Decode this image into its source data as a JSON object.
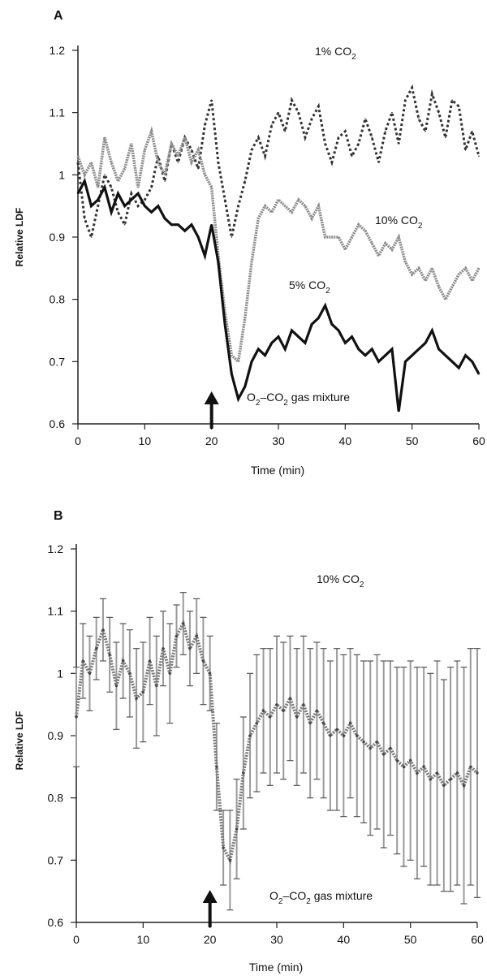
{
  "chart_data": [
    {
      "type": "line",
      "panel": "A",
      "xlabel": "Time (min)",
      "ylabel": "Relative LDF",
      "xlim": [
        0,
        60
      ],
      "ylim": [
        0.6,
        1.2
      ],
      "xticks": [
        "0",
        "10",
        "20",
        "30",
        "40",
        "50",
        "60"
      ],
      "yticks": [
        "0.6",
        "0.7",
        "0.8",
        "0.9",
        "1",
        "1.1",
        "1.2"
      ],
      "grid": false,
      "legend": "none",
      "annotation": {
        "arrow_at_x": 20,
        "text_main": "O",
        "text_sub1": "2",
        "text_mid": "–CO",
        "text_sub2": "2",
        "text_tail": " gas mixture"
      },
      "series": [
        {
          "name": "1% CO 2",
          "label_main": "1% CO",
          "label_sub": "2",
          "style": "dotted",
          "color": "#333333",
          "x": [
            0,
            1,
            2,
            3,
            4,
            5,
            6,
            7,
            8,
            9,
            10,
            11,
            12,
            13,
            14,
            15,
            16,
            17,
            18,
            19,
            20,
            21,
            22,
            23,
            24,
            25,
            26,
            27,
            28,
            29,
            30,
            31,
            32,
            33,
            34,
            35,
            36,
            37,
            38,
            39,
            40,
            41,
            42,
            43,
            44,
            45,
            46,
            47,
            48,
            49,
            50,
            51,
            52,
            53,
            54,
            55,
            56,
            57,
            58,
            59,
            60
          ],
          "y": [
            1.02,
            0.93,
            0.9,
            0.95,
            1.0,
            0.98,
            0.94,
            0.92,
            0.97,
            0.95,
            0.96,
            0.98,
            1.03,
            0.99,
            1.05,
            1.02,
            1.06,
            1.04,
            1.01,
            1.08,
            1.12,
            1.02,
            0.96,
            0.9,
            0.95,
            0.99,
            1.04,
            1.06,
            1.03,
            1.08,
            1.1,
            1.07,
            1.12,
            1.1,
            1.06,
            1.09,
            1.11,
            1.05,
            1.02,
            1.06,
            1.07,
            1.03,
            1.05,
            1.09,
            1.06,
            1.02,
            1.07,
            1.1,
            1.05,
            1.12,
            1.14,
            1.09,
            1.07,
            1.13,
            1.1,
            1.06,
            1.12,
            1.11,
            1.04,
            1.07,
            1.03
          ]
        },
        {
          "name": "10% CO 2",
          "label_main": "10% CO",
          "label_sub": "2",
          "style": "gray-thick",
          "color": "#8e8e8e",
          "x": [
            0,
            1,
            2,
            3,
            4,
            5,
            6,
            7,
            8,
            9,
            10,
            11,
            12,
            13,
            14,
            15,
            16,
            17,
            18,
            19,
            20,
            21,
            22,
            23,
            24,
            25,
            26,
            27,
            28,
            29,
            30,
            31,
            32,
            33,
            34,
            35,
            36,
            37,
            38,
            39,
            40,
            41,
            42,
            43,
            44,
            45,
            46,
            47,
            48,
            49,
            50,
            51,
            52,
            53,
            54,
            55,
            56,
            57,
            58,
            59,
            60
          ],
          "y": [
            1.03,
            1.0,
            1.02,
            0.98,
            1.06,
            1.02,
            0.99,
            1.01,
            1.05,
            0.98,
            1.04,
            1.07,
            1.02,
            1.0,
            1.05,
            1.03,
            1.06,
            1.02,
            1.04,
            1.0,
            0.98,
            0.87,
            0.78,
            0.71,
            0.7,
            0.77,
            0.86,
            0.93,
            0.95,
            0.94,
            0.96,
            0.95,
            0.94,
            0.96,
            0.95,
            0.93,
            0.95,
            0.9,
            0.9,
            0.9,
            0.88,
            0.9,
            0.92,
            0.91,
            0.89,
            0.87,
            0.89,
            0.88,
            0.9,
            0.86,
            0.84,
            0.85,
            0.83,
            0.85,
            0.82,
            0.8,
            0.82,
            0.84,
            0.85,
            0.83,
            0.85
          ]
        },
        {
          "name": "5% CO 2",
          "label_main": "5% CO",
          "label_sub": "2",
          "style": "black-thick",
          "color": "#111111",
          "x": [
            0,
            1,
            2,
            3,
            4,
            5,
            6,
            7,
            8,
            9,
            10,
            11,
            12,
            13,
            14,
            15,
            16,
            17,
            18,
            19,
            20,
            21,
            22,
            23,
            24,
            25,
            26,
            27,
            28,
            29,
            30,
            31,
            32,
            33,
            34,
            35,
            36,
            37,
            38,
            39,
            40,
            41,
            42,
            43,
            44,
            45,
            46,
            47,
            48,
            49,
            50,
            51,
            52,
            53,
            54,
            55,
            56,
            57,
            58,
            59,
            60
          ],
          "y": [
            0.97,
            0.99,
            0.95,
            0.96,
            0.98,
            0.94,
            0.97,
            0.95,
            0.96,
            0.97,
            0.95,
            0.94,
            0.95,
            0.93,
            0.92,
            0.92,
            0.91,
            0.92,
            0.9,
            0.87,
            0.92,
            0.86,
            0.76,
            0.68,
            0.64,
            0.66,
            0.7,
            0.72,
            0.71,
            0.73,
            0.74,
            0.72,
            0.75,
            0.74,
            0.73,
            0.76,
            0.77,
            0.79,
            0.76,
            0.75,
            0.73,
            0.74,
            0.72,
            0.71,
            0.72,
            0.7,
            0.71,
            0.72,
            0.62,
            0.7,
            0.71,
            0.72,
            0.73,
            0.75,
            0.72,
            0.71,
            0.7,
            0.69,
            0.71,
            0.7,
            0.68
          ]
        }
      ]
    },
    {
      "type": "line",
      "panel": "B",
      "xlabel": "Time (min)",
      "ylabel": "Relative LDF",
      "xlim": [
        0,
        60
      ],
      "ylim": [
        0.6,
        1.2
      ],
      "xticks": [
        "0",
        "10",
        "20",
        "30",
        "40",
        "50",
        "60"
      ],
      "yticks": [
        "0.6",
        "0.7",
        "0.8",
        "0.9",
        "1",
        "1.1",
        "1.2"
      ],
      "grid": false,
      "legend": "none",
      "annotation": {
        "arrow_at_x": 20,
        "text_main": "O",
        "text_sub1": "2",
        "text_mid": "–CO",
        "text_sub2": "2",
        "text_tail": " gas mixture"
      },
      "series": [
        {
          "name": "10% CO 2",
          "label_main": "10% CO",
          "label_sub": "2",
          "style": "gray-errorbars",
          "color": "#7a7a7a",
          "x": [
            0,
            1,
            2,
            3,
            4,
            5,
            6,
            7,
            8,
            9,
            10,
            11,
            12,
            13,
            14,
            15,
            16,
            17,
            18,
            19,
            20,
            21,
            22,
            23,
            24,
            25,
            26,
            27,
            28,
            29,
            30,
            31,
            32,
            33,
            34,
            35,
            36,
            37,
            38,
            39,
            40,
            41,
            42,
            43,
            44,
            45,
            46,
            47,
            48,
            49,
            50,
            51,
            52,
            53,
            54,
            55,
            56,
            57,
            58,
            59,
            60
          ],
          "y": [
            0.93,
            1.02,
            1.0,
            1.04,
            1.07,
            1.03,
            0.98,
            1.02,
            1.0,
            0.96,
            0.97,
            1.02,
            0.98,
            1.04,
            1.0,
            1.06,
            1.08,
            1.04,
            1.06,
            1.02,
            1.0,
            0.85,
            0.72,
            0.7,
            0.75,
            0.84,
            0.9,
            0.92,
            0.94,
            0.93,
            0.95,
            0.94,
            0.96,
            0.93,
            0.95,
            0.92,
            0.94,
            0.92,
            0.9,
            0.91,
            0.9,
            0.92,
            0.9,
            0.89,
            0.88,
            0.89,
            0.87,
            0.88,
            0.86,
            0.85,
            0.86,
            0.84,
            0.85,
            0.83,
            0.84,
            0.82,
            0.83,
            0.84,
            0.82,
            0.85,
            0.84
          ],
          "err": [
            0.08,
            0.06,
            0.06,
            0.05,
            0.05,
            0.06,
            0.07,
            0.06,
            0.07,
            0.08,
            0.08,
            0.07,
            0.08,
            0.06,
            0.08,
            0.05,
            0.05,
            0.06,
            0.06,
            0.07,
            0.06,
            0.07,
            0.06,
            0.08,
            0.08,
            0.09,
            0.1,
            0.11,
            0.1,
            0.11,
            0.11,
            0.11,
            0.1,
            0.11,
            0.11,
            0.12,
            0.11,
            0.12,
            0.12,
            0.13,
            0.13,
            0.12,
            0.13,
            0.13,
            0.14,
            0.14,
            0.15,
            0.14,
            0.15,
            0.16,
            0.16,
            0.17,
            0.16,
            0.17,
            0.18,
            0.17,
            0.18,
            0.18,
            0.19,
            0.19,
            0.2
          ]
        }
      ]
    }
  ]
}
